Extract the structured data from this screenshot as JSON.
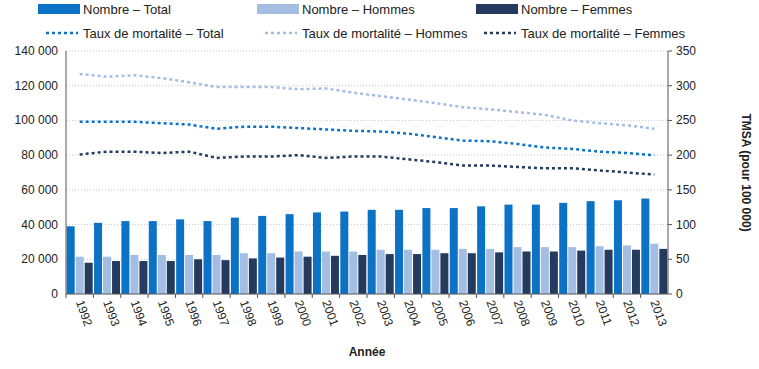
{
  "chart_data": {
    "type": "bar",
    "xlabel": "Année",
    "y2label": "TMSA (pour 100 000)",
    "categories": [
      "1992",
      "1993",
      "1994",
      "1995",
      "1996",
      "1997",
      "1998",
      "1999",
      "2000",
      "2001",
      "2002",
      "2003",
      "2004",
      "2005",
      "2006",
      "2007",
      "2008",
      "2009",
      "2010",
      "2011",
      "2012",
      "2013"
    ],
    "ylim": [
      0,
      140000
    ],
    "yticks": [
      0,
      {
        "value": 20000,
        "label": "20 000"
      },
      {
        "value": 40000,
        "label": "40 000"
      },
      {
        "value": 60000,
        "label": "60 000"
      },
      {
        "value": 80000,
        "label": "80 000"
      },
      {
        "value": 100000,
        "label": "100 000"
      },
      {
        "value": 120000,
        "label": "120 000"
      },
      {
        "value": 140000,
        "label": "140 000"
      }
    ],
    "y2lim": [
      0,
      350
    ],
    "y2ticks": [
      0,
      50,
      100,
      150,
      200,
      250,
      300,
      350
    ],
    "grid": true,
    "legend": "top",
    "series": [
      {
        "name": "Nombre – Total",
        "type": "bar",
        "color": "#0b72c6",
        "values": [
          39000,
          41000,
          42000,
          42000,
          43000,
          42000,
          44000,
          45000,
          46000,
          47000,
          47500,
          48500,
          48500,
          49500,
          49500,
          50500,
          51500,
          51500,
          52500,
          53500,
          54000,
          55000
        ]
      },
      {
        "name": "Nombre – Hommes",
        "type": "bar",
        "color": "#a3bde3",
        "values": [
          21500,
          21500,
          22500,
          22500,
          22500,
          22500,
          23500,
          23500,
          24500,
          24500,
          24500,
          25500,
          25500,
          25500,
          26000,
          26000,
          27000,
          27000,
          27000,
          27500,
          28000,
          29000
        ]
      },
      {
        "name": "Nombre – Femmes",
        "type": "bar",
        "color": "#243b5e",
        "values": [
          18000,
          19000,
          19000,
          19000,
          20000,
          19500,
          20500,
          21000,
          21500,
          22000,
          22500,
          23000,
          23000,
          23500,
          23500,
          24000,
          24500,
          24500,
          25000,
          25500,
          25500,
          26000
        ]
      },
      {
        "name": "Taux de mortalité – Total",
        "type": "line",
        "axis": "y2",
        "color": "#0b72c6",
        "line_style": "dotted",
        "values": [
          248,
          248,
          248,
          246,
          244,
          238,
          241,
          241,
          239,
          237,
          235,
          234,
          231,
          226,
          221,
          220,
          216,
          211,
          209,
          205,
          203,
          200
        ]
      },
      {
        "name": "Taux de mortalité – Hommes",
        "type": "line",
        "axis": "y2",
        "color": "#a3bde3",
        "line_style": "dotted",
        "values": [
          317,
          313,
          315,
          311,
          305,
          298,
          298,
          298,
          295,
          296,
          290,
          285,
          280,
          275,
          269,
          266,
          262,
          258,
          250,
          246,
          243,
          238
        ]
      },
      {
        "name": "Taux de mortalité – Femmes",
        "type": "line",
        "axis": "y2",
        "color": "#243b5e",
        "line_style": "dotted",
        "values": [
          201,
          205,
          205,
          203,
          205,
          196,
          198,
          198,
          200,
          196,
          198,
          198,
          194,
          190,
          185,
          185,
          183,
          181,
          181,
          178,
          175,
          172
        ]
      }
    ]
  }
}
